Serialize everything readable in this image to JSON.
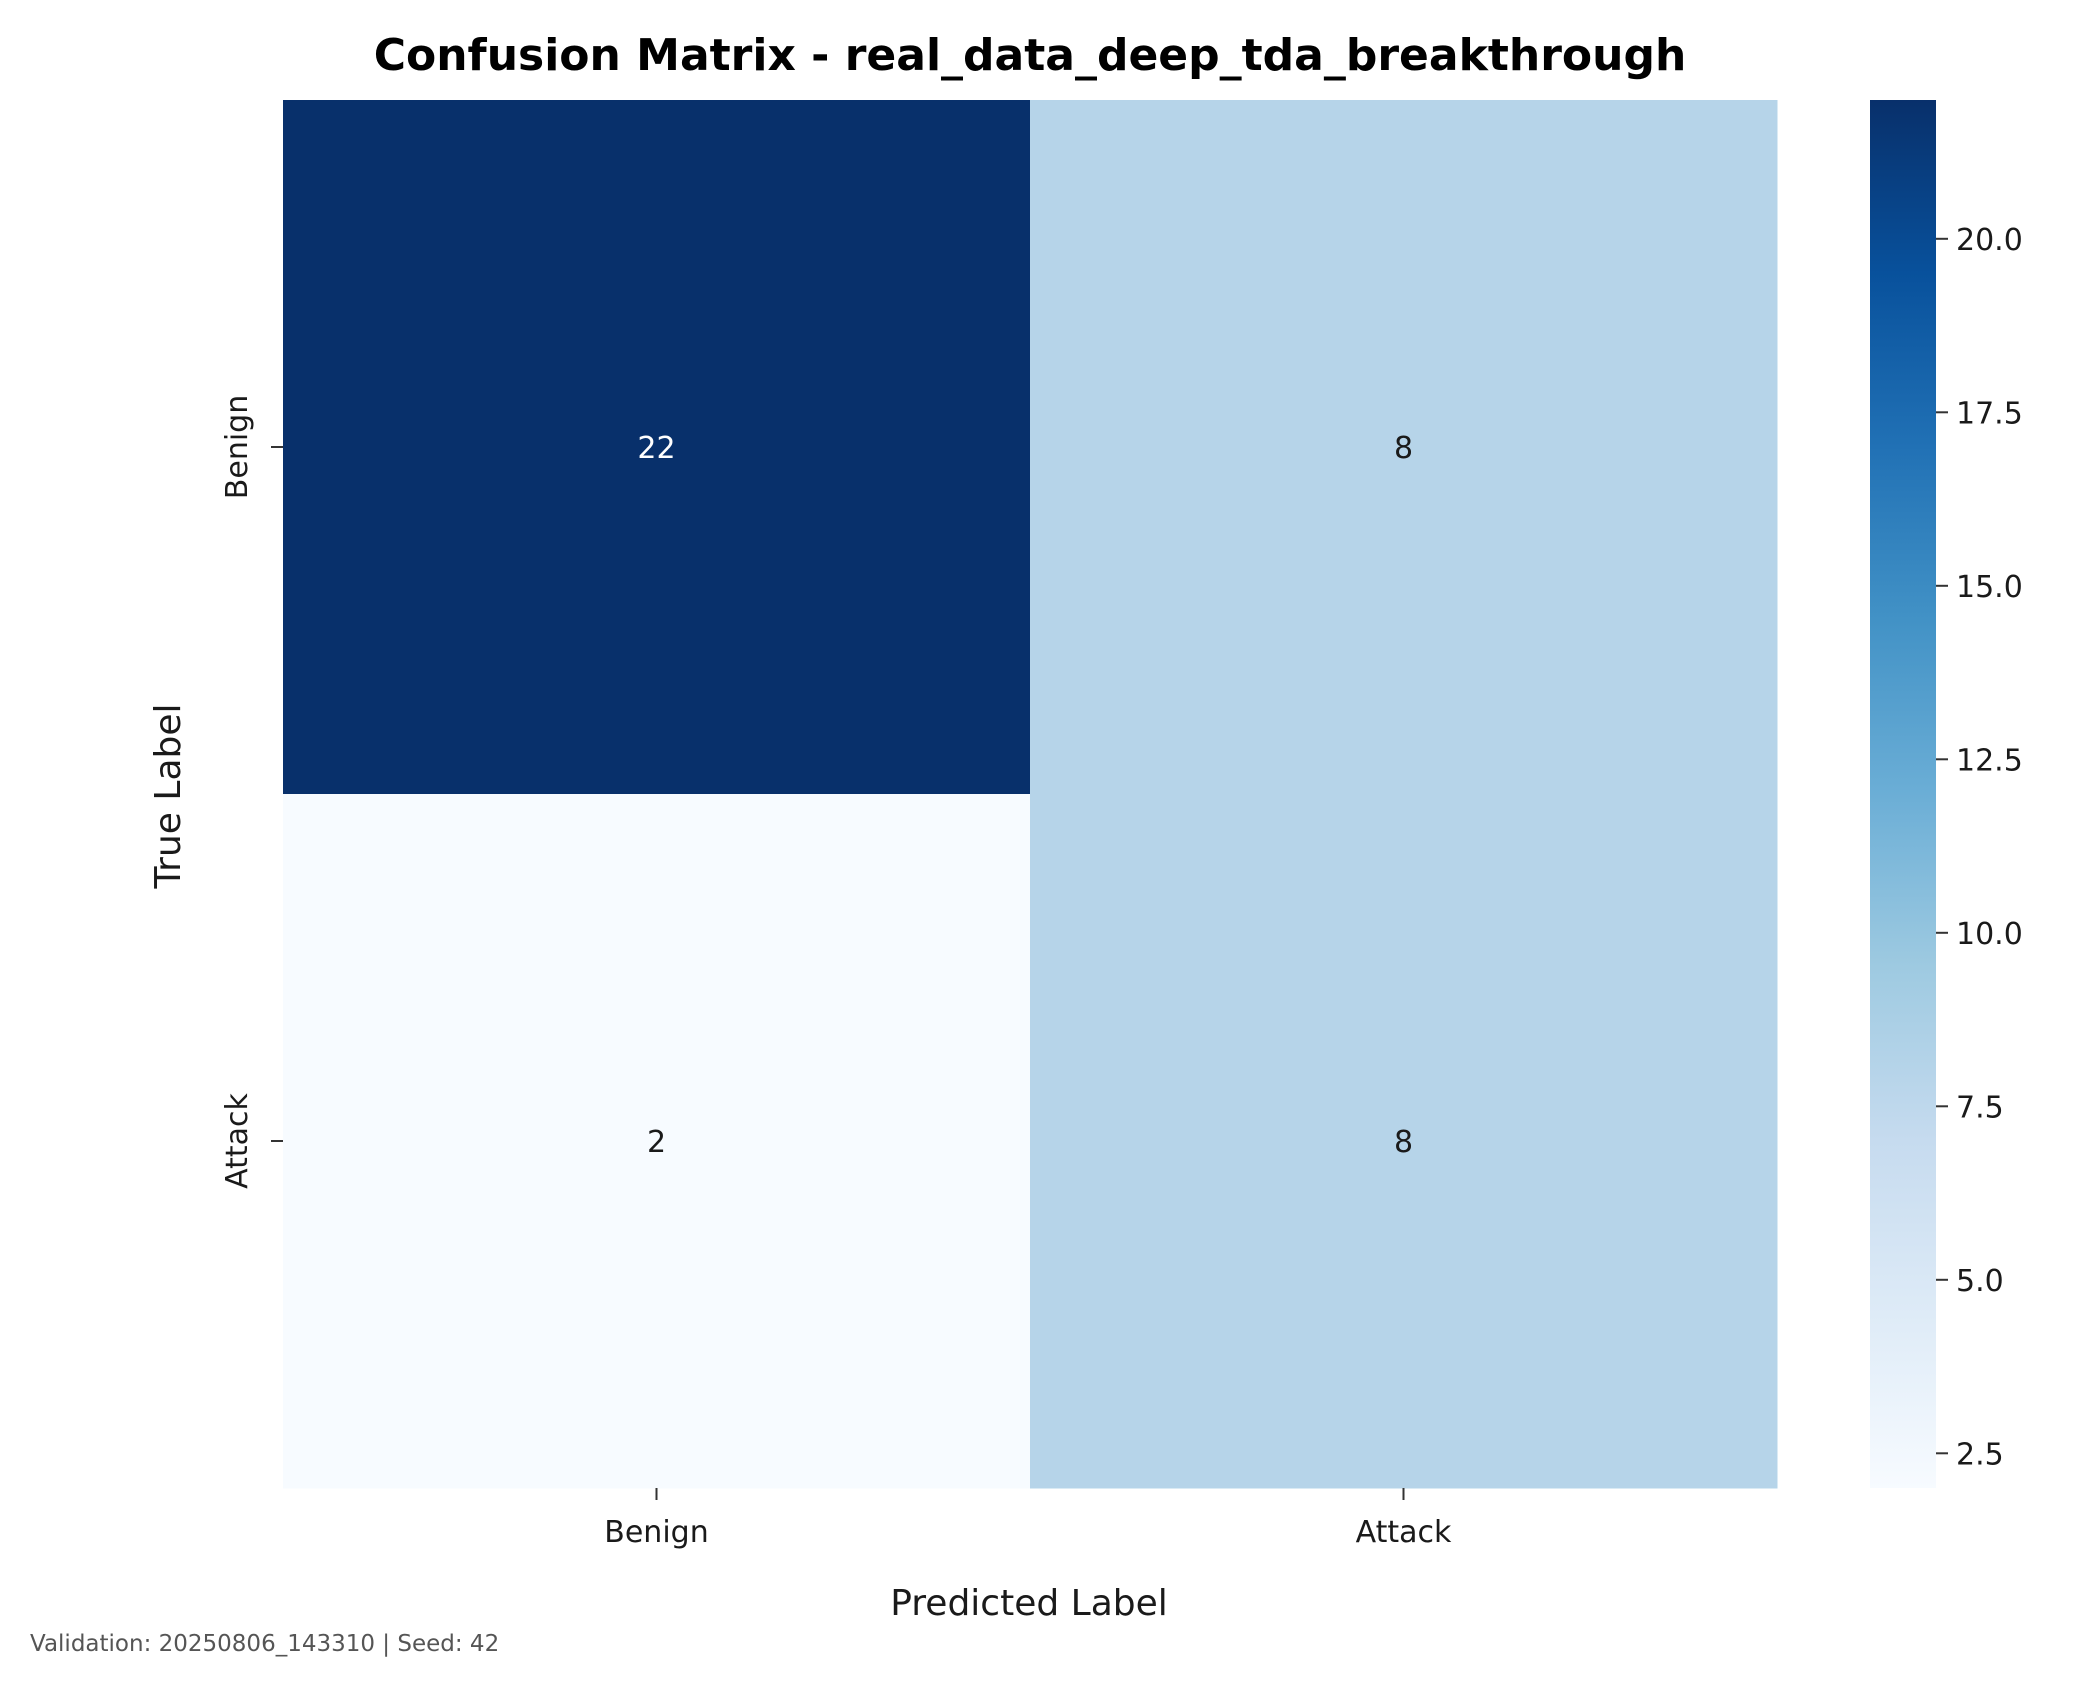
{
  "chart_data": {
    "type": "heatmap",
    "title": "Confusion Matrix - real_data_deep_tda_breakthrough",
    "xlabel": "Predicted Label",
    "ylabel": "True Label",
    "x_categories": [
      "Benign",
      "Attack"
    ],
    "y_categories": [
      "Benign",
      "Attack"
    ],
    "values": [
      [
        22,
        8
      ],
      [
        2,
        8
      ]
    ],
    "colormap": "Blues",
    "colorbar": {
      "min": 2,
      "max": 22,
      "ticks": [
        "2.5",
        "5.0",
        "7.5",
        "10.0",
        "12.5",
        "15.0",
        "17.5",
        "20.0"
      ]
    },
    "grid": false
  },
  "footer": "Validation: 20250806_143310 | Seed: 42",
  "colors": {
    "cmap_stops": [
      "#f7fbff",
      "#deebf7",
      "#c6dbef",
      "#9ecae1",
      "#6baed6",
      "#4292c6",
      "#2171b5",
      "#08519c",
      "#08306b"
    ],
    "dark_text": "#1a1a1a",
    "light_text": "#ffffff"
  }
}
